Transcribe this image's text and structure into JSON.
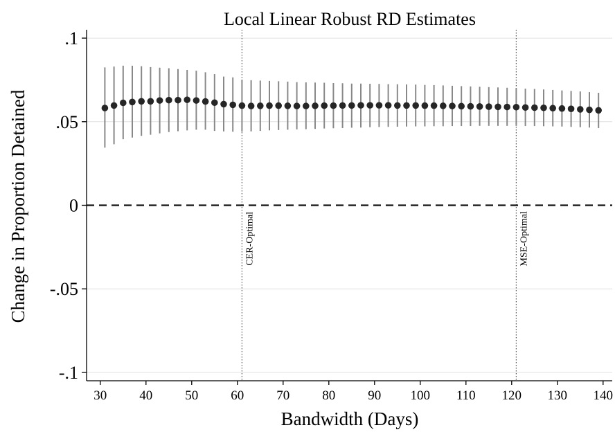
{
  "chart_data": {
    "type": "scatter",
    "title": "Local Linear Robust RD Estimates",
    "xlabel": "Bandwidth (Days)",
    "ylabel": "Change in Proportion Detained",
    "xlim": [
      27,
      142
    ],
    "ylim": [
      -0.105,
      0.105
    ],
    "xticks": [
      30,
      40,
      50,
      60,
      70,
      80,
      90,
      100,
      110,
      120,
      130,
      140
    ],
    "yticks": [
      {
        "value": 0.1,
        "label": ".1"
      },
      {
        "value": 0.05,
        "label": ".05"
      },
      {
        "value": 0,
        "label": "0"
      },
      {
        "value": -0.05,
        "label": "-.05"
      },
      {
        "value": -0.1,
        "label": "-.1"
      }
    ],
    "grid": true,
    "reference_line": {
      "value": 0,
      "style": "dashed"
    },
    "vertical_lines": [
      {
        "x": 61,
        "label": "CER-Optimal"
      },
      {
        "x": 121,
        "label": "MSE-Optimal"
      }
    ],
    "series": [
      {
        "marker": "circle",
        "color": "#262626",
        "errorbar_color": "#888888",
        "x": [
          31,
          33,
          35,
          37,
          39,
          41,
          43,
          45,
          47,
          49,
          51,
          53,
          55,
          57,
          59,
          61,
          63,
          65,
          67,
          69,
          71,
          73,
          75,
          77,
          79,
          81,
          83,
          85,
          87,
          89,
          91,
          93,
          95,
          97,
          99,
          101,
          103,
          105,
          107,
          109,
          111,
          113,
          115,
          117,
          119,
          121,
          123,
          125,
          127,
          129,
          131,
          133,
          135,
          137,
          139
        ],
        "y": [
          0.0582,
          0.0597,
          0.0613,
          0.0618,
          0.0622,
          0.0622,
          0.0627,
          0.0629,
          0.0629,
          0.0631,
          0.0627,
          0.0621,
          0.0614,
          0.0605,
          0.0601,
          0.0596,
          0.0594,
          0.0595,
          0.0596,
          0.0596,
          0.0595,
          0.0594,
          0.0594,
          0.0595,
          0.0596,
          0.0596,
          0.0597,
          0.0597,
          0.0598,
          0.0598,
          0.0598,
          0.0598,
          0.0597,
          0.0597,
          0.0597,
          0.0596,
          0.0596,
          0.0595,
          0.0594,
          0.0593,
          0.0592,
          0.0591,
          0.059,
          0.0589,
          0.0588,
          0.0587,
          0.0585,
          0.0584,
          0.0583,
          0.0581,
          0.0579,
          0.0577,
          0.0574,
          0.0571,
          0.0568
        ],
        "ci_lower": [
          0.0345,
          0.0365,
          0.0395,
          0.0405,
          0.0415,
          0.0422,
          0.043,
          0.0438,
          0.0443,
          0.0448,
          0.0452,
          0.0452,
          0.0445,
          0.0442,
          0.044,
          0.044,
          0.0442,
          0.0445,
          0.0448,
          0.045,
          0.0452,
          0.0454,
          0.0455,
          0.0457,
          0.0459,
          0.0461,
          0.0462,
          0.0464,
          0.0465,
          0.0467,
          0.0468,
          0.0469,
          0.047,
          0.0471,
          0.0472,
          0.0472,
          0.0473,
          0.0473,
          0.0474,
          0.0474,
          0.0474,
          0.0475,
          0.0475,
          0.0475,
          0.0475,
          0.0475,
          0.0474,
          0.0474,
          0.0473,
          0.0472,
          0.0471,
          0.0469,
          0.0467,
          0.0465,
          0.0462
        ],
        "ci_upper": [
          0.0825,
          0.083,
          0.0835,
          0.0835,
          0.0832,
          0.0827,
          0.0823,
          0.082,
          0.0815,
          0.081,
          0.0805,
          0.0796,
          0.0785,
          0.077,
          0.0765,
          0.0752,
          0.0748,
          0.0746,
          0.0744,
          0.0742,
          0.074,
          0.0737,
          0.0735,
          0.0734,
          0.0733,
          0.0731,
          0.073,
          0.0728,
          0.0728,
          0.0727,
          0.0726,
          0.0725,
          0.0724,
          0.0723,
          0.0722,
          0.072,
          0.0719,
          0.0717,
          0.0715,
          0.0713,
          0.0711,
          0.0709,
          0.0707,
          0.0705,
          0.0703,
          0.0701,
          0.0698,
          0.0696,
          0.0693,
          0.069,
          0.0687,
          0.0684,
          0.0681,
          0.0677,
          0.0673
        ]
      }
    ]
  }
}
